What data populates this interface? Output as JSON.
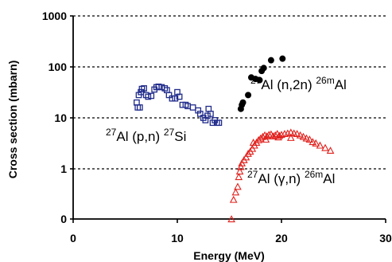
{
  "chart_data": {
    "type": "scatter",
    "xlabel": "Energy (MeV)",
    "ylabel": "Cross section (mbarn)",
    "xlim": [
      0,
      30
    ],
    "ylim": [
      0,
      1000
    ],
    "y_scale": "log",
    "y_zero_tick": 0,
    "x_ticks": [
      0,
      10,
      20,
      30
    ],
    "y_ticks": [
      0,
      1,
      10,
      100,
      1000
    ],
    "x_tick_labels": [
      "0",
      "10",
      "20",
      "30"
    ],
    "y_tick_labels": [
      "0",
      "1",
      "10",
      "100",
      "1000"
    ],
    "grid": "dashed horizontal",
    "annotations": [
      {
        "target": "Al",
        "target_mass": "27",
        "reaction": "(p,n)",
        "product": "Si",
        "product_mass": "27",
        "color": "#000000"
      },
      {
        "target": "Al",
        "target_mass": "27",
        "reaction": "(n,2n)",
        "product": "Al",
        "product_mass": "26m",
        "color": "#000000"
      },
      {
        "target": "Al",
        "target_mass": "27",
        "reaction": "(γ,n)",
        "product": "Al",
        "product_mass": "26m",
        "color": "#000000"
      }
    ],
    "series": [
      {
        "marker": "square-open",
        "color": "#1f2a8a",
        "points": [
          [
            6.1,
            20
          ],
          [
            6.2,
            16
          ],
          [
            6.4,
            16
          ],
          [
            6.3,
            28
          ],
          [
            6.5,
            32
          ],
          [
            6.8,
            38
          ],
          [
            6.6,
            37
          ],
          [
            7.0,
            28
          ],
          [
            7.2,
            26
          ],
          [
            7.5,
            27
          ],
          [
            7.8,
            36
          ],
          [
            8.0,
            40
          ],
          [
            8.2,
            41
          ],
          [
            8.5,
            40
          ],
          [
            8.8,
            38
          ],
          [
            9.0,
            35
          ],
          [
            9.2,
            28
          ],
          [
            9.5,
            24
          ],
          [
            9.8,
            24
          ],
          [
            10.0,
            32
          ],
          [
            10.2,
            26
          ],
          [
            10.5,
            18
          ],
          [
            10.8,
            18
          ],
          [
            11.0,
            17
          ],
          [
            11.5,
            16
          ],
          [
            12.0,
            14
          ],
          [
            12.2,
            12
          ],
          [
            12.5,
            10
          ],
          [
            12.7,
            9
          ],
          [
            12.9,
            11
          ],
          [
            13.0,
            15
          ],
          [
            13.2,
            12
          ],
          [
            13.4,
            8
          ],
          [
            13.6,
            9
          ],
          [
            13.8,
            8
          ],
          [
            14.0,
            8
          ]
        ]
      },
      {
        "marker": "circle-filled",
        "color": "#000000",
        "points": [
          [
            16.1,
            15
          ],
          [
            16.2,
            18
          ],
          [
            16.3,
            20
          ],
          [
            16.8,
            28
          ],
          [
            17.1,
            62
          ],
          [
            17.5,
            58
          ],
          [
            17.9,
            55
          ],
          [
            18.1,
            83
          ],
          [
            18.3,
            95
          ],
          [
            19.0,
            135
          ],
          [
            20.1,
            145
          ]
        ]
      },
      {
        "marker": "triangle-open",
        "color": "#e0201c",
        "points": [
          [
            15.2,
            0.1
          ],
          [
            15.4,
            0.25
          ],
          [
            15.6,
            0.35
          ],
          [
            15.8,
            0.45
          ],
          [
            15.9,
            0.7
          ],
          [
            16.0,
            0.9
          ],
          [
            16.1,
            1.1
          ],
          [
            16.2,
            1.3
          ],
          [
            16.4,
            1.5
          ],
          [
            16.6,
            1.7
          ],
          [
            16.8,
            2.0
          ],
          [
            17.0,
            2.2
          ],
          [
            17.2,
            2.5
          ],
          [
            17.4,
            2.9
          ],
          [
            17.6,
            3.3
          ],
          [
            17.8,
            3.7
          ],
          [
            18.0,
            4.0
          ],
          [
            18.2,
            4.3
          ],
          [
            18.4,
            4.6
          ],
          [
            18.6,
            4.4
          ],
          [
            18.8,
            4.7
          ],
          [
            19.0,
            4.8
          ],
          [
            19.2,
            4.4
          ],
          [
            19.4,
            4.6
          ],
          [
            19.6,
            4.9
          ],
          [
            19.8,
            4.5
          ],
          [
            20.0,
            4.7
          ],
          [
            20.3,
            4.9
          ],
          [
            20.6,
            5.0
          ],
          [
            20.9,
            5.2
          ],
          [
            21.2,
            5.0
          ],
          [
            21.5,
            4.9
          ],
          [
            21.8,
            4.6
          ],
          [
            22.1,
            4.3
          ],
          [
            22.4,
            4.0
          ],
          [
            22.7,
            3.8
          ],
          [
            23.0,
            3.4
          ],
          [
            23.3,
            3.2
          ],
          [
            23.7,
            2.9
          ],
          [
            24.2,
            2.6
          ],
          [
            24.7,
            2.3
          ],
          [
            17.3,
            3.3
          ],
          [
            18.5,
            3.8
          ],
          [
            19.7,
            4.2
          ],
          [
            20.9,
            4.1
          ]
        ]
      }
    ]
  }
}
